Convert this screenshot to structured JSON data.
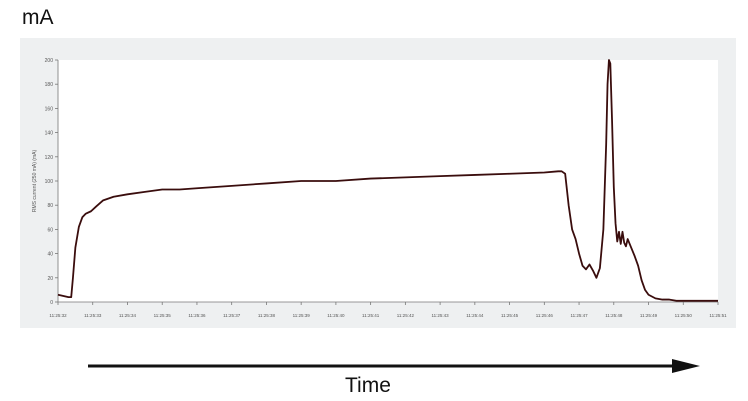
{
  "unit_label": "mA",
  "time_label": "Time",
  "colors": {
    "frame": "#eef0f1",
    "plot_bg": "#ffffff",
    "line": "#3a0d0d",
    "axis": "#777777",
    "arrow": "#111111"
  },
  "chart_data": {
    "type": "line",
    "title": "",
    "xlabel": "",
    "ylabel": "RMS current (250 mA) (mA)",
    "ylim": [
      0,
      200
    ],
    "yticks": [
      0,
      20,
      40,
      60,
      80,
      100,
      120,
      140,
      160,
      180,
      200
    ],
    "xticks": [
      "11:25:32",
      "11:25:33",
      "11:25:34",
      "11:25:35",
      "11:25:36",
      "11:25:37",
      "11:25:38",
      "11:25:39",
      "11:25:40",
      "11:25:41",
      "11:25:42",
      "11:25:43",
      "11:25:44",
      "11:25:45",
      "11:25:46",
      "11:25:47",
      "11:25:48",
      "11:25:49",
      "11:25:50",
      "11:25:51"
    ],
    "xlim": [
      0,
      19
    ],
    "grid": false,
    "legend": "none",
    "series": [
      {
        "x": [
          0,
          0.3,
          0.38,
          0.43,
          0.5,
          0.6,
          0.7,
          0.8,
          0.95,
          1.1,
          1.3,
          1.6,
          2.0,
          2.5,
          3.0,
          3.5,
          4.0,
          5.0,
          6.0,
          7.0,
          8.0,
          9.0,
          10.0,
          11.0,
          12.0,
          13.0,
          14.0,
          14.4,
          14.5,
          14.6,
          14.7,
          14.8,
          14.9,
          15.0,
          15.1,
          15.2,
          15.3,
          15.4,
          15.5,
          15.6,
          15.7,
          15.78,
          15.82,
          15.86,
          15.9,
          15.95,
          16.0,
          16.05,
          16.1,
          16.15,
          16.2,
          16.25,
          16.3,
          16.35,
          16.4,
          16.5,
          16.6,
          16.7,
          16.8,
          16.9,
          17.0,
          17.2,
          17.4,
          17.6,
          17.8,
          18.0,
          18.5,
          19.0
        ],
        "y": [
          6,
          4,
          4,
          20,
          45,
          62,
          70,
          73,
          75,
          79,
          84,
          87,
          89,
          91,
          93,
          93,
          94,
          96,
          98,
          100,
          100,
          102,
          103,
          104,
          105,
          106,
          107,
          108,
          108,
          106,
          80,
          60,
          52,
          40,
          30,
          27,
          31,
          26,
          20,
          28,
          60,
          130,
          180,
          200,
          197,
          150,
          95,
          65,
          50,
          58,
          48,
          58,
          49,
          46,
          52,
          45,
          38,
          30,
          18,
          10,
          6,
          3,
          2,
          2,
          1,
          1,
          1,
          1
        ]
      }
    ]
  }
}
